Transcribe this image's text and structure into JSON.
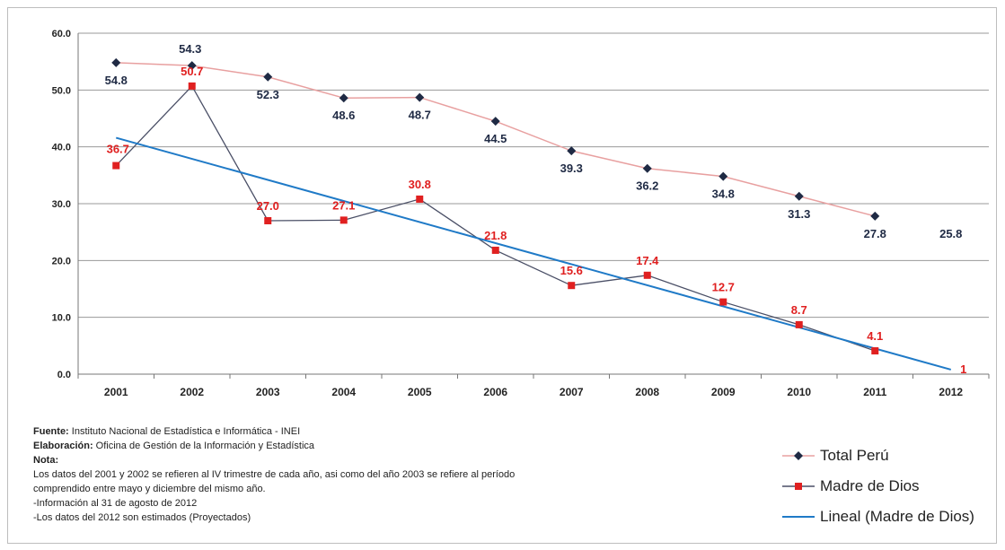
{
  "chart_data": {
    "type": "line",
    "categories": [
      "2001",
      "2002",
      "2003",
      "2004",
      "2005",
      "2006",
      "2007",
      "2008",
      "2009",
      "2010",
      "2011",
      "2012"
    ],
    "ylim": [
      0,
      60
    ],
    "yticks": [
      "0.0",
      "10.0",
      "20.0",
      "30.0",
      "40.0",
      "50.0",
      "60.0"
    ],
    "grid": true,
    "legend_position": "bottom-right",
    "series": [
      {
        "name": "Total Perú",
        "values": [
          54.8,
          54.3,
          52.3,
          48.6,
          48.7,
          44.5,
          39.3,
          36.2,
          34.8,
          31.3,
          27.8,
          null
        ],
        "labels": [
          "54.8",
          "54.3",
          "52.3",
          "48.6",
          "48.7",
          "44.5",
          "39.3",
          "36.2",
          "34.8",
          "31.3",
          "27.8",
          "25.8"
        ],
        "color": "#1f2a44",
        "line_color": "#e8a0a0"
      },
      {
        "name": "Madre de Dios",
        "values": [
          36.7,
          50.7,
          27.0,
          27.1,
          30.8,
          21.8,
          15.6,
          17.4,
          12.7,
          8.7,
          4.1,
          null
        ],
        "labels": [
          "36.7",
          "50.7",
          "27.0",
          "27.1",
          "30.8",
          "21.8",
          "15.6",
          "17.4",
          "12.7",
          "8.7",
          "4.1",
          "1"
        ],
        "color": "#e02020",
        "line_color": "#4a4f66"
      },
      {
        "name": "Lineal (Madre de Dios)",
        "type": "trendline",
        "from": {
          "x": "2001",
          "y": 41.6
        },
        "to": {
          "x": "2012",
          "y": 0.8
        },
        "color": "#1f7ac7"
      }
    ]
  },
  "notes": {
    "fuente_label": "Fuente:",
    "fuente_text": " Instituto Nacional de Estadística e Informática - INEI",
    "elaboracion_label": "Elaboración:",
    "elaboracion_text": " Oficina de Gestión de la Información y Estadística",
    "nota_label": "Nota:",
    "line1": "Los datos del 2001 y 2002 se refieren al IV trimestre de cada año, asi como del año 2003 se refiere al período",
    "line2": "comprendido  entre mayo y diciembre del mismo año.",
    "line3": "-Información  al 31 de agosto de 2012",
    "line4": "-Los datos del 2012 son estimados (Proyectados)"
  },
  "legend": {
    "total": "Total Perú",
    "mdd": "Madre de Dios",
    "lineal": "Lineal (Madre de Dios)"
  }
}
